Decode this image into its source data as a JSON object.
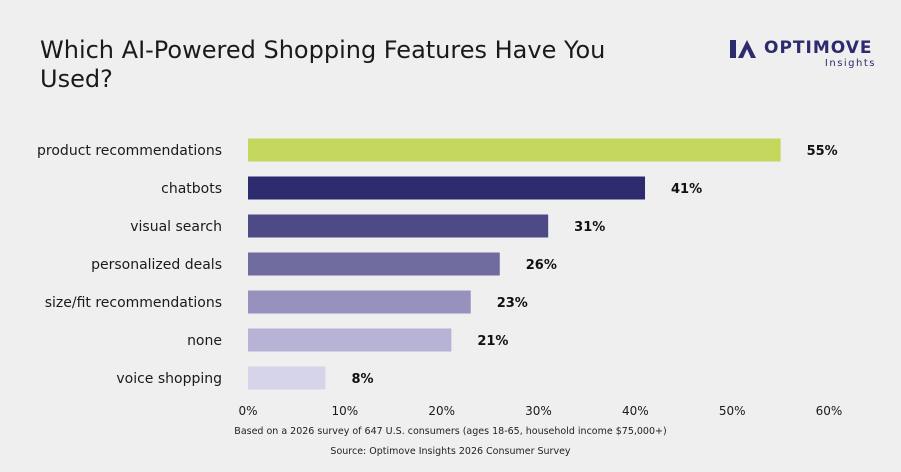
{
  "header": {
    "title": "Which AI-Powered Shopping Features Have You Used?",
    "logo_name": "OPTIMOVE",
    "logo_sub": "Insights"
  },
  "notes": {
    "survey": "Based on a 2026 survey of 647 U.S. consumers (ages 18-65, household income $75,000+)",
    "source": "Source: Optimove Insights 2026 Consumer Survey"
  },
  "colors": {
    "brand": "#2d2a6e",
    "bars": [
      "#c4d65c",
      "#2d2a6e",
      "#4e4a86",
      "#6f6b9f",
      "#9692bd",
      "#b6b3d6",
      "#d6d4eb"
    ]
  },
  "chart_data": {
    "type": "bar",
    "orientation": "horizontal",
    "categories": [
      "product recommendations",
      "chatbots",
      "visual search",
      "personalized deals",
      "size/fit recommendations",
      "none",
      "voice shopping"
    ],
    "values": [
      55,
      41,
      31,
      26,
      23,
      21,
      8
    ],
    "data_labels": [
      "55%",
      "41%",
      "31%",
      "26%",
      "23%",
      "21%",
      "8%"
    ],
    "xlim": [
      0,
      60
    ],
    "x_ticks": [
      0,
      10,
      20,
      30,
      40,
      50,
      60
    ],
    "x_tick_labels": [
      "0%",
      "10%",
      "20%",
      "30%",
      "40%",
      "50%",
      "60%"
    ],
    "grid": false
  }
}
